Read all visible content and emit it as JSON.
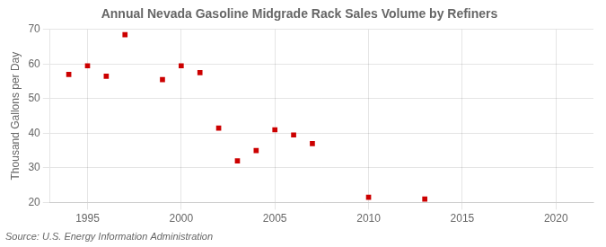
{
  "chart_data": {
    "type": "scatter",
    "title": "Annual Nevada Gasoline Midgrade Rack Sales Volume by Refiners",
    "y_label": "Thousand Gallons per Day",
    "annotation": "Source: U.S. Energy Information Administration",
    "x": [
      1994,
      1995,
      1996,
      1997,
      1999,
      2000,
      2001,
      2002,
      2003,
      2004,
      2005,
      2006,
      2007,
      2010,
      2013
    ],
    "values": [
      57.0,
      59.5,
      56.5,
      68.5,
      55.5,
      59.5,
      57.5,
      41.5,
      32.0,
      35.0,
      41.0,
      39.5,
      37.0,
      21.5,
      21.0
    ],
    "color": "#cc0000",
    "marker": "square",
    "xlim": [
      1993,
      2022
    ],
    "ylim": [
      20,
      70
    ],
    "xticks": [
      1995,
      2000,
      2005,
      2010,
      2015,
      2020
    ],
    "yticks": [
      20,
      30,
      40,
      50,
      60,
      70
    ],
    "grid": true
  }
}
